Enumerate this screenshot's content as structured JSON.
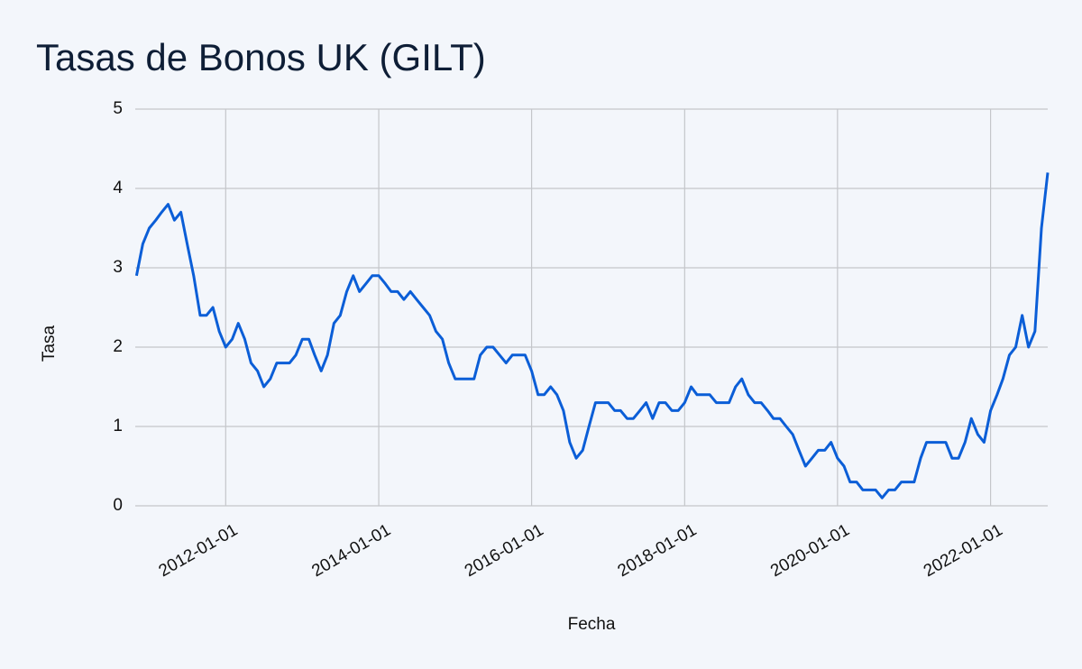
{
  "chart_data": {
    "type": "line",
    "title": "Tasas de Bonos UK (GILT)",
    "x_label": "Fecha",
    "y_label": "Tasa",
    "x": [
      "2010-11-01",
      "2010-12-01",
      "2011-01-01",
      "2011-02-01",
      "2011-03-01",
      "2011-04-01",
      "2011-05-01",
      "2011-06-01",
      "2011-07-01",
      "2011-08-01",
      "2011-09-01",
      "2011-10-01",
      "2011-11-01",
      "2011-12-01",
      "2012-01-01",
      "2012-02-01",
      "2012-03-01",
      "2012-04-01",
      "2012-05-01",
      "2012-06-01",
      "2012-07-01",
      "2012-08-01",
      "2012-09-01",
      "2012-10-01",
      "2012-11-01",
      "2012-12-01",
      "2013-01-01",
      "2013-02-01",
      "2013-03-01",
      "2013-04-01",
      "2013-05-01",
      "2013-06-01",
      "2013-07-01",
      "2013-08-01",
      "2013-09-01",
      "2013-10-01",
      "2013-11-01",
      "2013-12-01",
      "2014-01-01",
      "2014-02-01",
      "2014-03-01",
      "2014-04-01",
      "2014-05-01",
      "2014-06-01",
      "2014-07-01",
      "2014-08-01",
      "2014-09-01",
      "2014-10-01",
      "2014-11-01",
      "2014-12-01",
      "2015-01-01",
      "2015-02-01",
      "2015-03-01",
      "2015-04-01",
      "2015-05-01",
      "2015-06-01",
      "2015-07-01",
      "2015-08-01",
      "2015-09-01",
      "2015-10-01",
      "2015-11-01",
      "2015-12-01",
      "2016-01-01",
      "2016-02-01",
      "2016-03-01",
      "2016-04-01",
      "2016-05-01",
      "2016-06-01",
      "2016-07-01",
      "2016-08-01",
      "2016-09-01",
      "2016-10-01",
      "2016-11-01",
      "2016-12-01",
      "2017-01-01",
      "2017-02-01",
      "2017-03-01",
      "2017-04-01",
      "2017-05-01",
      "2017-06-01",
      "2017-07-01",
      "2017-08-01",
      "2017-09-01",
      "2017-10-01",
      "2017-11-01",
      "2017-12-01",
      "2018-01-01",
      "2018-02-01",
      "2018-03-01",
      "2018-04-01",
      "2018-05-01",
      "2018-06-01",
      "2018-07-01",
      "2018-08-01",
      "2018-09-01",
      "2018-10-01",
      "2018-11-01",
      "2018-12-01",
      "2019-01-01",
      "2019-02-01",
      "2019-03-01",
      "2019-04-01",
      "2019-05-01",
      "2019-06-01",
      "2019-07-01",
      "2019-08-01",
      "2019-09-01",
      "2019-10-01",
      "2019-11-01",
      "2019-12-01",
      "2020-01-01",
      "2020-02-01",
      "2020-03-01",
      "2020-04-01",
      "2020-05-01",
      "2020-06-01",
      "2020-07-01",
      "2020-08-01",
      "2020-09-01",
      "2020-10-01",
      "2020-11-01",
      "2020-12-01",
      "2021-01-01",
      "2021-02-01",
      "2021-03-01",
      "2021-04-01",
      "2021-05-01",
      "2021-06-01",
      "2021-07-01",
      "2021-08-01",
      "2021-09-01",
      "2021-10-01",
      "2021-11-01",
      "2021-12-01",
      "2022-01-01",
      "2022-02-01",
      "2022-03-01",
      "2022-04-01",
      "2022-05-01",
      "2022-06-01",
      "2022-07-01",
      "2022-08-01",
      "2022-09-01",
      "2022-10-01"
    ],
    "values": [
      2.9,
      3.3,
      3.5,
      3.6,
      3.7,
      3.8,
      3.6,
      3.7,
      3.3,
      2.9,
      2.4,
      2.4,
      2.5,
      2.2,
      2.0,
      2.1,
      2.3,
      2.1,
      1.8,
      1.7,
      1.5,
      1.6,
      1.8,
      1.8,
      1.8,
      1.9,
      2.1,
      2.1,
      1.9,
      1.7,
      1.9,
      2.3,
      2.4,
      2.7,
      2.9,
      2.7,
      2.8,
      2.9,
      2.9,
      2.8,
      2.7,
      2.7,
      2.6,
      2.7,
      2.6,
      2.5,
      2.4,
      2.2,
      2.1,
      1.8,
      1.6,
      1.6,
      1.6,
      1.6,
      1.9,
      2.0,
      2.0,
      1.9,
      1.8,
      1.9,
      1.9,
      1.9,
      1.7,
      1.4,
      1.4,
      1.5,
      1.4,
      1.2,
      0.8,
      0.6,
      0.7,
      1.0,
      1.3,
      1.3,
      1.3,
      1.2,
      1.2,
      1.1,
      1.1,
      1.2,
      1.3,
      1.1,
      1.3,
      1.3,
      1.2,
      1.2,
      1.3,
      1.5,
      1.4,
      1.4,
      1.4,
      1.3,
      1.3,
      1.3,
      1.5,
      1.6,
      1.4,
      1.3,
      1.3,
      1.2,
      1.1,
      1.1,
      1.0,
      0.9,
      0.7,
      0.5,
      0.6,
      0.7,
      0.7,
      0.8,
      0.6,
      0.5,
      0.3,
      0.3,
      0.2,
      0.2,
      0.2,
      0.1,
      0.2,
      0.2,
      0.3,
      0.3,
      0.3,
      0.6,
      0.8,
      0.8,
      0.8,
      0.8,
      0.6,
      0.6,
      0.8,
      1.1,
      0.9,
      0.8,
      1.2,
      1.4,
      1.6,
      1.9,
      2.0,
      2.4,
      2.0,
      2.2,
      3.5,
      4.2
    ],
    "color": "#0b5ed7",
    "xlim": [
      "2010-10-26",
      "2022-10-01"
    ],
    "xticks": [
      "2012-01-01",
      "2014-01-01",
      "2016-01-01",
      "2018-01-01",
      "2020-01-01",
      "2022-01-01"
    ],
    "ylim": [
      0,
      5
    ],
    "yticks": [
      0,
      1,
      2,
      3,
      4,
      5
    ],
    "grid": true
  }
}
